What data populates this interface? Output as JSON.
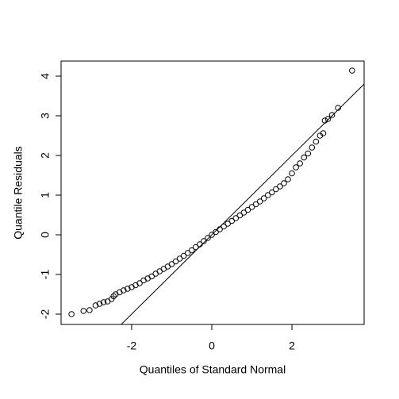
{
  "chart_data": {
    "type": "scatter",
    "xlabel": "Quantiles of Standard Normal",
    "ylabel": "Quantile Residuals",
    "xlim": [
      -3.76,
      3.8
    ],
    "ylim": [
      -2.26,
      4.38
    ],
    "xticks": [
      -2,
      0,
      2
    ],
    "yticks": [
      -2,
      -1,
      0,
      1,
      2,
      3,
      4
    ],
    "color": "#000000",
    "reference_line": {
      "intercept": 0,
      "slope": 1
    },
    "x": [
      -3.5,
      -3.2,
      -3.05,
      -2.9,
      -2.8,
      -2.7,
      -2.6,
      -2.5,
      -2.45,
      -2.4,
      -2.3,
      -2.2,
      -2.1,
      -2.0,
      -1.9,
      -1.8,
      -1.7,
      -1.6,
      -1.5,
      -1.4,
      -1.3,
      -1.2,
      -1.1,
      -1.0,
      -0.9,
      -0.8,
      -0.7,
      -0.6,
      -0.5,
      -0.4,
      -0.3,
      -0.2,
      -0.1,
      0,
      0.1,
      0.2,
      0.3,
      0.4,
      0.5,
      0.6,
      0.7,
      0.8,
      0.9,
      1.0,
      1.1,
      1.2,
      1.3,
      1.4,
      1.5,
      1.6,
      1.7,
      1.8,
      1.9,
      2.0,
      2.1,
      2.2,
      2.3,
      2.4,
      2.5,
      2.6,
      2.7,
      2.78,
      2.82,
      2.9,
      3.0,
      3.15,
      3.5
    ],
    "values": [
      -2.0,
      -1.92,
      -1.9,
      -1.78,
      -1.74,
      -1.7,
      -1.68,
      -1.62,
      -1.55,
      -1.5,
      -1.45,
      -1.4,
      -1.36,
      -1.32,
      -1.27,
      -1.22,
      -1.15,
      -1.1,
      -1.05,
      -0.98,
      -0.92,
      -0.86,
      -0.8,
      -0.74,
      -0.67,
      -0.6,
      -0.53,
      -0.46,
      -0.39,
      -0.31,
      -0.24,
      -0.16,
      -0.08,
      0,
      0.07,
      0.14,
      0.21,
      0.28,
      0.35,
      0.42,
      0.49,
      0.56,
      0.63,
      0.7,
      0.77,
      0.84,
      0.92,
      1.0,
      1.07,
      1.15,
      1.22,
      1.3,
      1.4,
      1.55,
      1.7,
      1.8,
      1.95,
      2.05,
      2.2,
      2.35,
      2.5,
      2.56,
      2.88,
      2.92,
      3.02,
      3.2,
      4.14
    ]
  }
}
